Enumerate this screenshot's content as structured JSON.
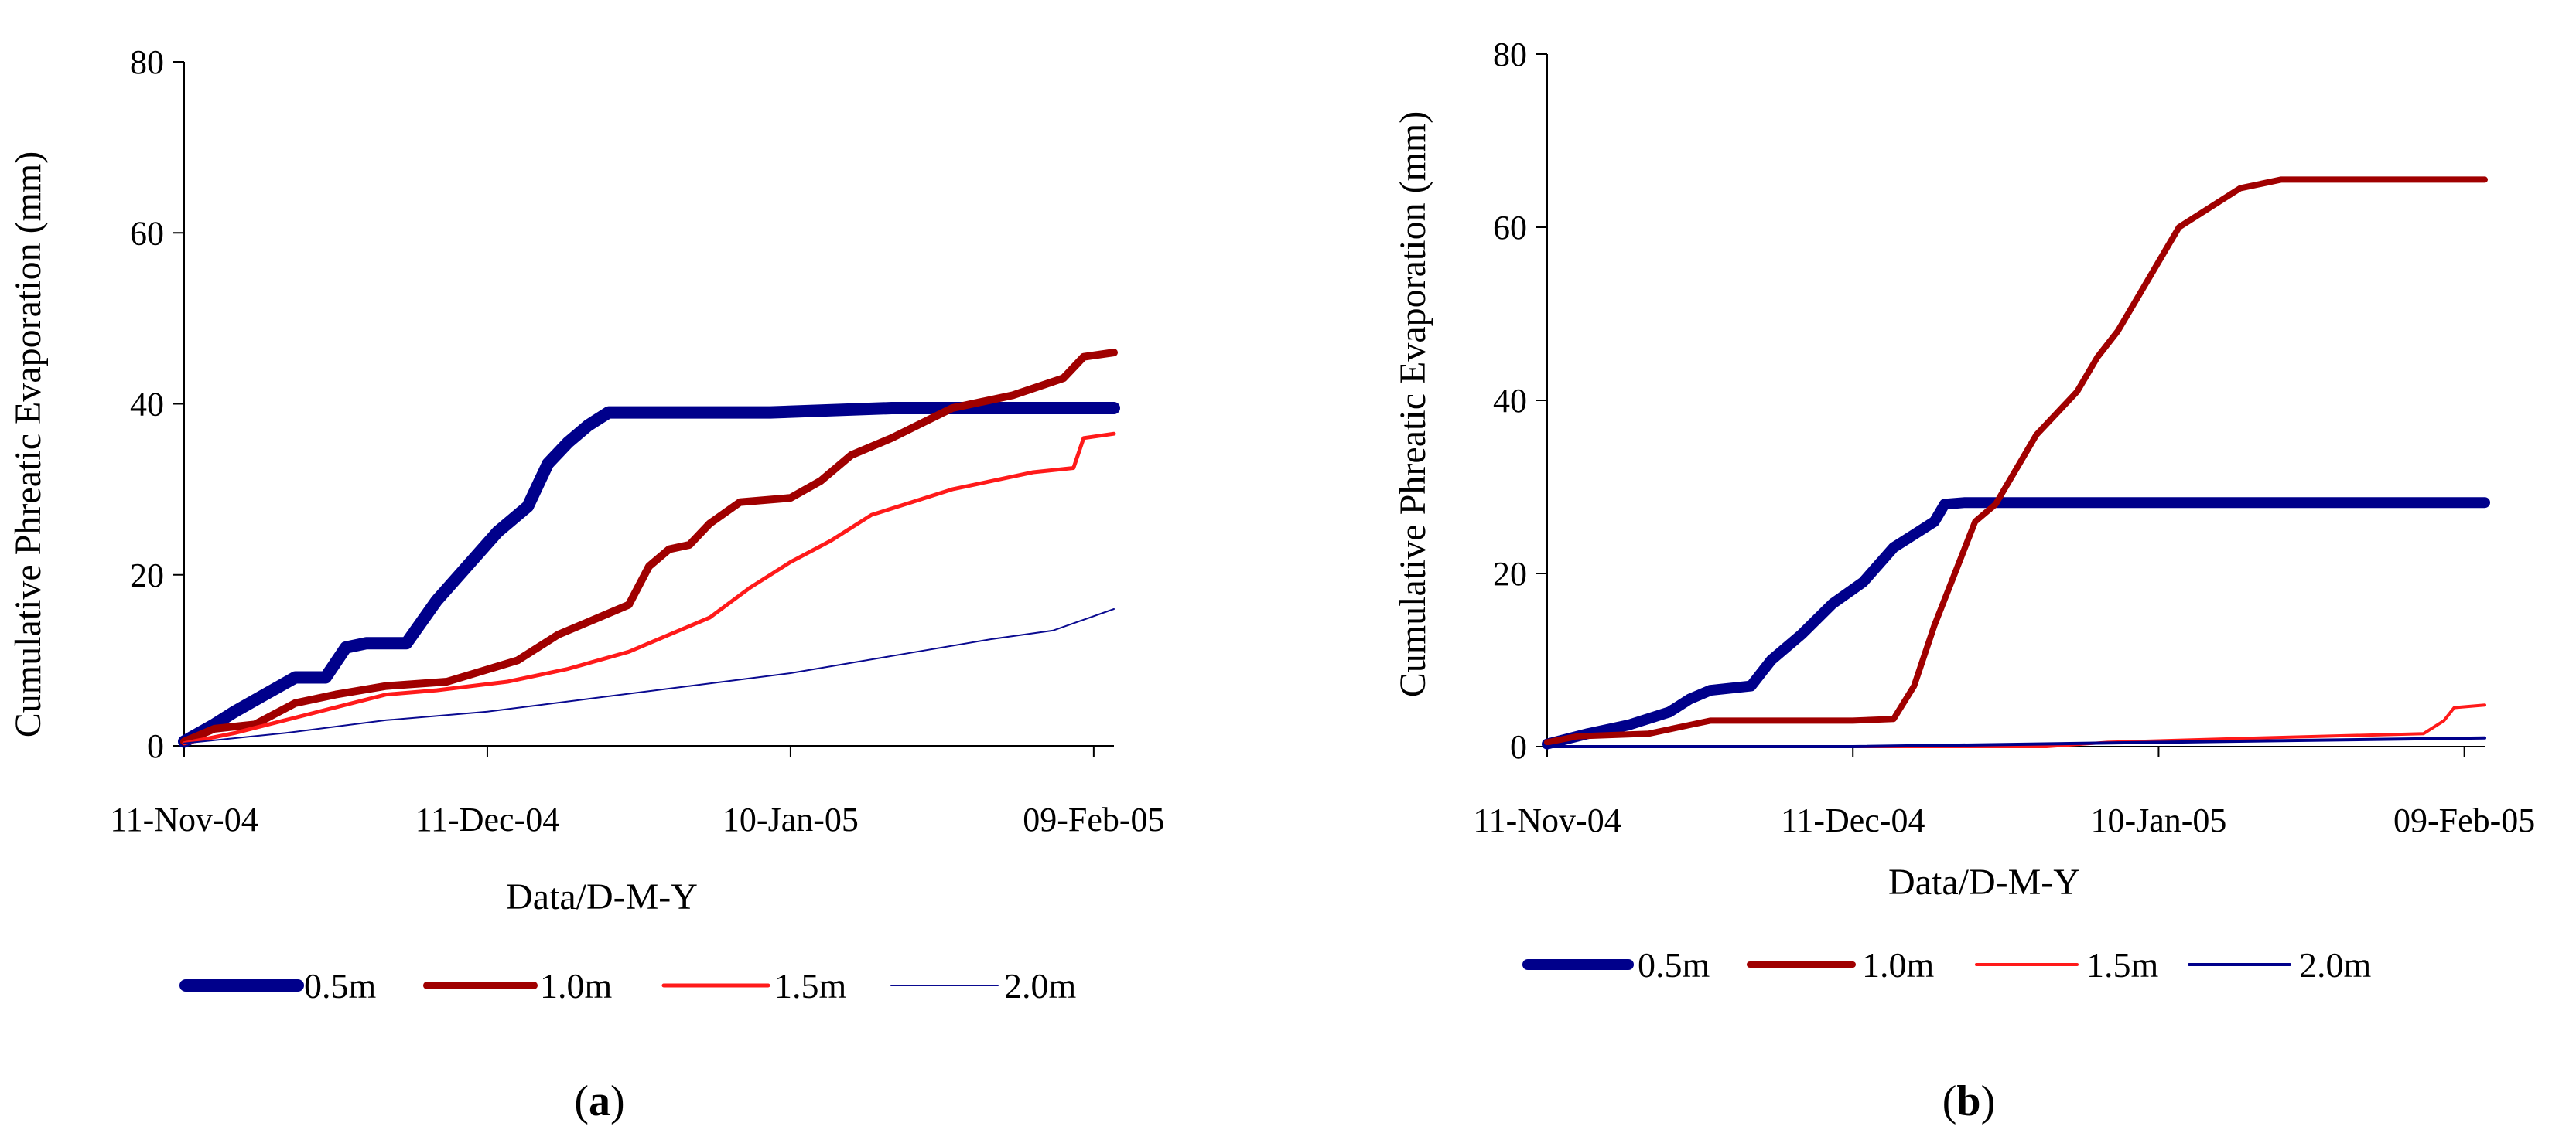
{
  "chart_data": [
    {
      "type": "line",
      "panel_label": "a",
      "xlabel": "Data/D-M-Y",
      "ylabel": "Cumulative Phreatic Evaporation (mm)",
      "ylim": [
        0,
        80
      ],
      "yticks": [
        0,
        20,
        40,
        60,
        80
      ],
      "xlim": [
        0,
        92
      ],
      "xticks": [
        {
          "day": 0,
          "label": "11-Nov-04"
        },
        {
          "day": 30,
          "label": "11-Dec-04"
        },
        {
          "day": 60,
          "label": "10-Jan-05"
        },
        {
          "day": 90,
          "label": "09-Feb-05"
        }
      ],
      "series": [
        {
          "name": "0.5m",
          "color": "#00008b",
          "points": [
            [
              0,
              0.5
            ],
            [
              3,
              2.5
            ],
            [
              5,
              4
            ],
            [
              8,
              6
            ],
            [
              11,
              8
            ],
            [
              14,
              8
            ],
            [
              16,
              11.5
            ],
            [
              18,
              12
            ],
            [
              22,
              12
            ],
            [
              25,
              17
            ],
            [
              28,
              21
            ],
            [
              31,
              25
            ],
            [
              34,
              28
            ],
            [
              36,
              33
            ],
            [
              38,
              35.5
            ],
            [
              40,
              37.5
            ],
            [
              42,
              39
            ],
            [
              47,
              39
            ],
            [
              58,
              39
            ],
            [
              70,
              39.5
            ],
            [
              92,
              39.5
            ]
          ]
        },
        {
          "name": "1.0m",
          "color": "#a00000",
          "points": [
            [
              0,
              0.5
            ],
            [
              3,
              2
            ],
            [
              7,
              2.5
            ],
            [
              11,
              5
            ],
            [
              15,
              6
            ],
            [
              20,
              7
            ],
            [
              26,
              7.5
            ],
            [
              33,
              10
            ],
            [
              37,
              13
            ],
            [
              41,
              15
            ],
            [
              44,
              16.5
            ],
            [
              46,
              21
            ],
            [
              48,
              23
            ],
            [
              50,
              23.5
            ],
            [
              52,
              26
            ],
            [
              55,
              28.5
            ],
            [
              60,
              29
            ],
            [
              63,
              31
            ],
            [
              66,
              34
            ],
            [
              70,
              36
            ],
            [
              76,
              39.5
            ],
            [
              82,
              41
            ],
            [
              87,
              43
            ],
            [
              89,
              45.5
            ],
            [
              92,
              46
            ]
          ]
        },
        {
          "name": "1.5m",
          "color": "#ff1a1a",
          "points": [
            [
              0,
              0.3
            ],
            [
              5,
              1.5
            ],
            [
              10,
              3
            ],
            [
              15,
              4.5
            ],
            [
              20,
              6
            ],
            [
              25,
              6.5
            ],
            [
              32,
              7.5
            ],
            [
              38,
              9
            ],
            [
              44,
              11
            ],
            [
              48,
              13
            ],
            [
              52,
              15
            ],
            [
              56,
              18.5
            ],
            [
              60,
              21.5
            ],
            [
              64,
              24
            ],
            [
              68,
              27
            ],
            [
              72,
              28.5
            ],
            [
              76,
              30
            ],
            [
              80,
              31
            ],
            [
              84,
              32
            ],
            [
              88,
              32.5
            ],
            [
              89,
              36
            ],
            [
              92,
              36.5
            ]
          ]
        },
        {
          "name": "2.0m",
          "color": "#0a0a90",
          "points": [
            [
              0,
              0.3
            ],
            [
              10,
              1.5
            ],
            [
              20,
              3
            ],
            [
              30,
              4
            ],
            [
              40,
              5.5
            ],
            [
              50,
              7
            ],
            [
              60,
              8.5
            ],
            [
              70,
              10.5
            ],
            [
              80,
              12.5
            ],
            [
              86,
              13.5
            ],
            [
              92,
              16
            ]
          ]
        }
      ]
    },
    {
      "type": "line",
      "panel_label": "b",
      "xlabel": "Data/D-M-Y",
      "ylabel": "Cumulative Phreatic Evaporation (mm)",
      "ylim": [
        0,
        80
      ],
      "yticks": [
        0,
        20,
        40,
        60,
        80
      ],
      "xlim": [
        0,
        92
      ],
      "xticks": [
        {
          "day": 0,
          "label": "11-Nov-04"
        },
        {
          "day": 30,
          "label": "11-Dec-04"
        },
        {
          "day": 60,
          "label": "10-Jan-05"
        },
        {
          "day": 90,
          "label": "09-Feb-05"
        }
      ],
      "series": [
        {
          "name": "0.5m",
          "color": "#00008b",
          "points": [
            [
              0,
              0.3
            ],
            [
              4,
              1.5
            ],
            [
              8,
              2.5
            ],
            [
              12,
              4
            ],
            [
              14,
              5.5
            ],
            [
              16,
              6.5
            ],
            [
              20,
              7
            ],
            [
              22,
              10
            ],
            [
              25,
              13
            ],
            [
              28,
              16.5
            ],
            [
              31,
              19
            ],
            [
              34,
              23
            ],
            [
              36,
              24.5
            ],
            [
              38,
              26
            ],
            [
              39,
              28
            ],
            [
              41,
              28.2
            ],
            [
              60,
              28.2
            ],
            [
              92,
              28.2
            ]
          ]
        },
        {
          "name": "1.0m",
          "color": "#a00000",
          "points": [
            [
              0,
              0.5
            ],
            [
              3,
              1.2
            ],
            [
              10,
              1.5
            ],
            [
              14,
              2.5
            ],
            [
              16,
              3
            ],
            [
              30,
              3
            ],
            [
              34,
              3.2
            ],
            [
              36,
              7
            ],
            [
              38,
              14
            ],
            [
              40,
              20
            ],
            [
              42,
              26
            ],
            [
              44,
              28
            ],
            [
              46,
              32
            ],
            [
              48,
              36
            ],
            [
              50,
              38.5
            ],
            [
              52,
              41
            ],
            [
              54,
              45
            ],
            [
              56,
              48
            ],
            [
              58,
              52
            ],
            [
              60,
              56
            ],
            [
              62,
              60
            ],
            [
              64,
              61.5
            ],
            [
              68,
              64.5
            ],
            [
              72,
              65.5
            ],
            [
              92,
              65.5
            ]
          ]
        },
        {
          "name": "1.5m",
          "color": "#ff1a1a",
          "points": [
            [
              0,
              0
            ],
            [
              49,
              0
            ],
            [
              55,
              0.5
            ],
            [
              70,
              1
            ],
            [
              86,
              1.5
            ],
            [
              88,
              3
            ],
            [
              89,
              4.5
            ],
            [
              92,
              4.8
            ]
          ]
        },
        {
          "name": "2.0m",
          "color": "#00008b",
          "points": [
            [
              0,
              0
            ],
            [
              30,
              0
            ],
            [
              60,
              0.5
            ],
            [
              92,
              1
            ]
          ]
        }
      ]
    }
  ]
}
